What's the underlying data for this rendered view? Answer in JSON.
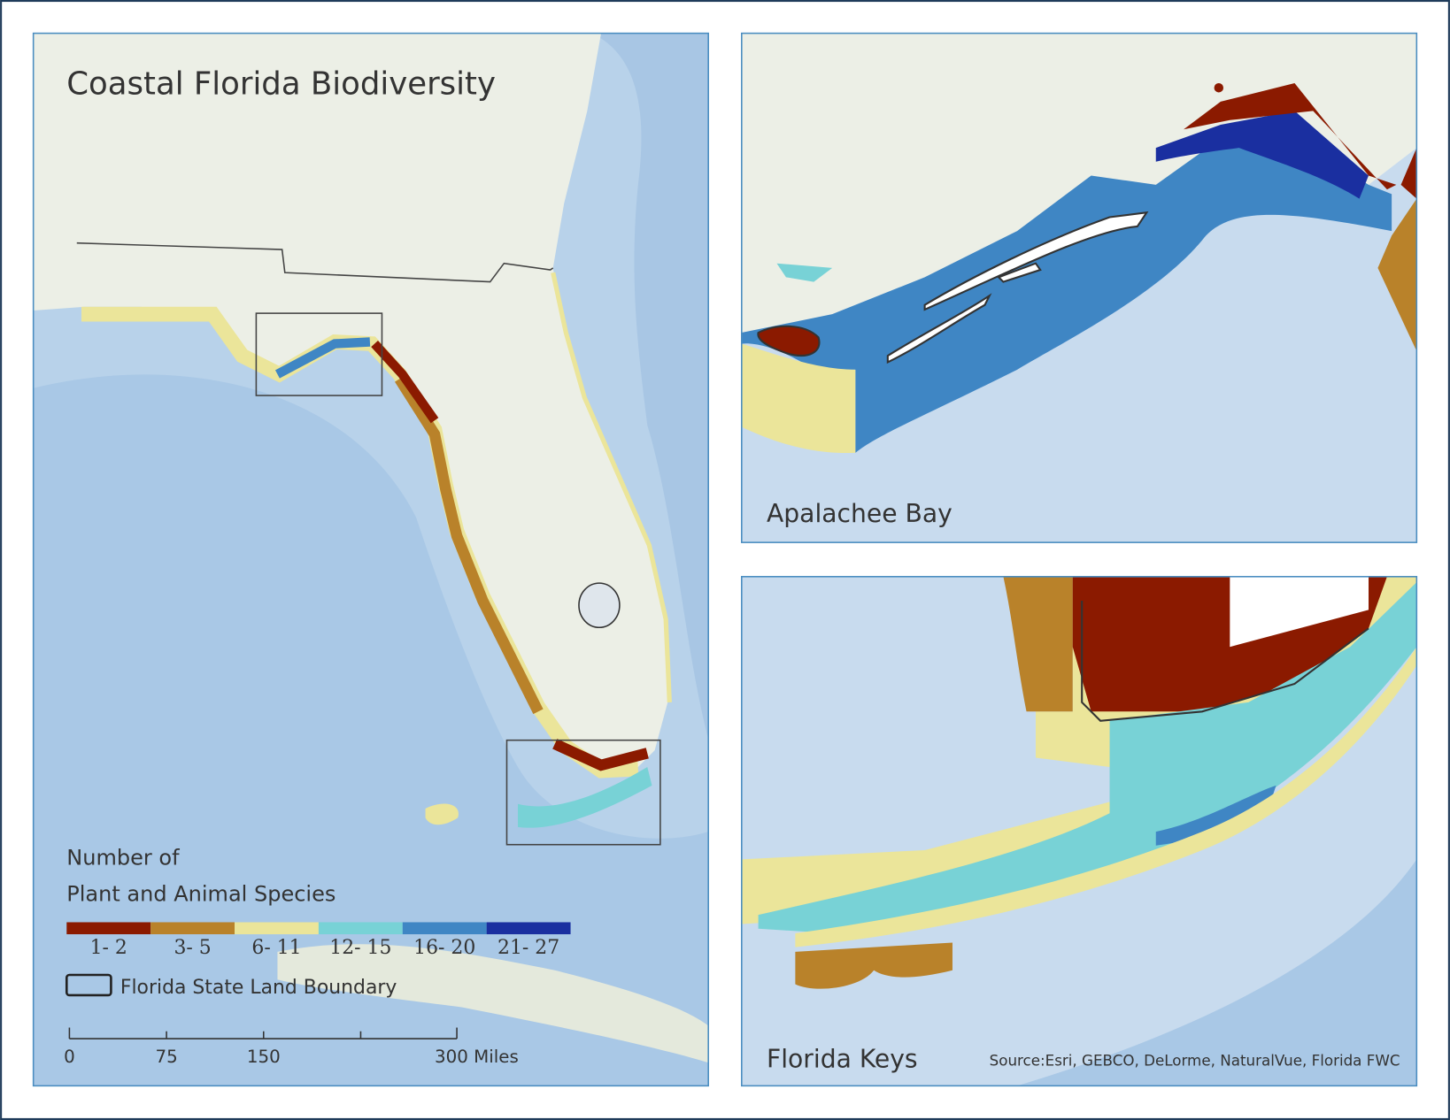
{
  "main_map": {
    "title": "Coastal Florida Biodiversity"
  },
  "legend": {
    "title_lines": [
      "Number of",
      "Plant and Animal Species"
    ],
    "classes": [
      {
        "label": "1- 2",
        "color": "#8b1a00"
      },
      {
        "label": "3- 5",
        "color": "#b9822a"
      },
      {
        "label": "6- 11",
        "color": "#ebe59a"
      },
      {
        "label": "12- 15",
        "color": "#78d2d6"
      },
      {
        "label": "16- 20",
        "color": "#3f86c4"
      },
      {
        "label": "21- 27",
        "color": "#1a2fa0"
      }
    ],
    "boundary_label": "Florida State Land Boundary"
  },
  "scale_bar": {
    "labels": [
      "0",
      "75",
      "150",
      "300 Miles"
    ]
  },
  "insets": [
    {
      "title": "Apalachee Bay"
    },
    {
      "title": "Florida Keys"
    }
  ],
  "source": "Source:Esri, GEBCO, DeLorme, NaturalVue, Florida FWC"
}
